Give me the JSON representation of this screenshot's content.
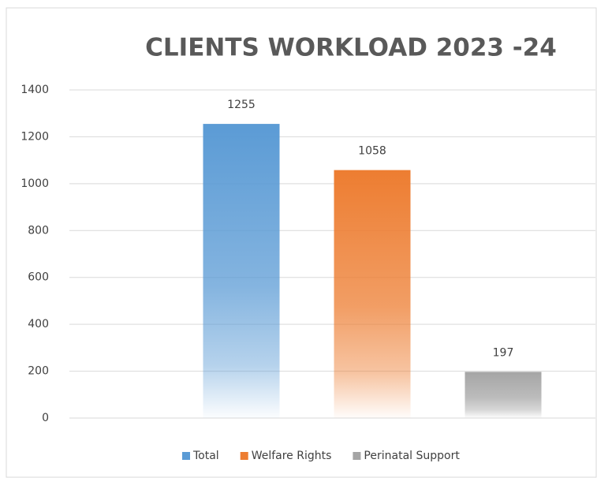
{
  "chart_data": {
    "type": "bar",
    "title": "CLIENTS WORKLOAD  2023 -24",
    "categories": [
      null
    ],
    "series": [
      {
        "name": "Total",
        "color": "#5b9bd5",
        "values": [
          1255
        ]
      },
      {
        "name": "Welfare Rights",
        "color": "#ed7d31",
        "values": [
          1058
        ]
      },
      {
        "name": "Perinatal Support",
        "color": "#a5a5a5",
        "values": [
          197
        ]
      }
    ],
    "ylim": [
      0,
      1400
    ],
    "yticks": [
      0,
      200,
      400,
      600,
      800,
      1000,
      1200,
      1400
    ],
    "grid": true,
    "legend": "bottom"
  }
}
